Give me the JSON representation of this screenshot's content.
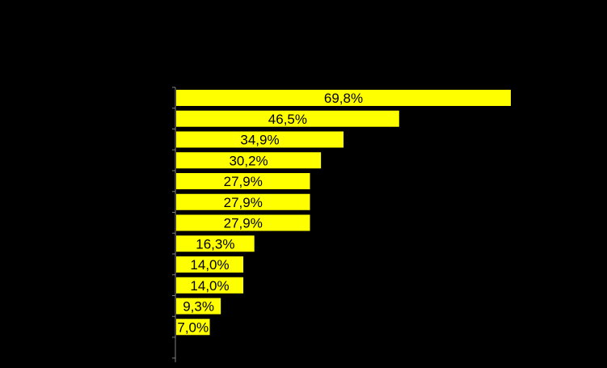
{
  "chart_data": {
    "type": "bar",
    "orientation": "horizontal",
    "title": "",
    "xlabel": "",
    "ylabel": "",
    "categories": [
      "",
      "",
      "",
      "",
      "",
      "",
      "",
      "",
      "",
      "",
      "",
      ""
    ],
    "values": [
      69.8,
      46.5,
      34.9,
      30.2,
      27.9,
      27.9,
      27.9,
      16.3,
      14.0,
      14.0,
      9.3,
      7.0
    ],
    "value_labels": [
      "69,8%",
      "46,5%",
      "34,9%",
      "30,2%",
      "27,9%",
      "27,9%",
      "27,9%",
      "16,3%",
      "14,0%",
      "14,0%",
      "9,3%",
      "7,0%"
    ],
    "xlim": [
      0,
      100
    ],
    "grid": false,
    "legend": "none",
    "colors": {
      "background": "#000000",
      "bar": "#FFFF00",
      "axis": "#808080",
      "label": "#000000"
    }
  }
}
